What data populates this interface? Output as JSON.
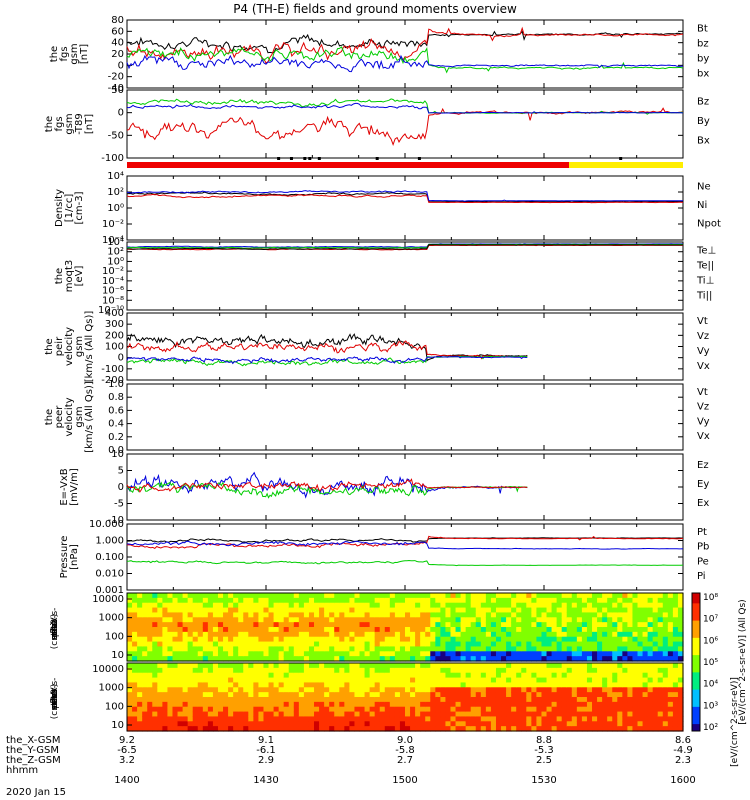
{
  "title": "P4 (TH-E) fields and ground moments overview",
  "date_label": "2020 Jan 15",
  "colors": {
    "black": "#000000",
    "red": "#e00000",
    "green": "#00cc00",
    "blue": "#0000dd",
    "yellow": "#ffee00",
    "flag_red": "#ee0000"
  },
  "chart_data": {
    "type": "line",
    "x_time_label": "hhmm",
    "x_ticks": [
      "1400",
      "1430",
      "1500",
      "1530",
      "1600"
    ],
    "x_range_minutes": [
      0,
      120
    ],
    "orbit_rows": [
      {
        "label": "the_X-GSM",
        "values": [
          "9.2",
          "9.1",
          "9.0",
          "8.8",
          "8.6"
        ]
      },
      {
        "label": "the_Y-GSM",
        "values": [
          "-6.5",
          "-6.1",
          "-5.8",
          "-5.3",
          "-4.9"
        ]
      },
      {
        "label": "the_Z-GSM",
        "values": [
          "3.2",
          "2.9",
          "2.7",
          "2.5",
          "2.3"
        ]
      }
    ],
    "panels": [
      {
        "id": "fgs",
        "ylabel": [
          "the",
          "fgs",
          "gsm",
          "[nT]"
        ],
        "yrange": [
          -40,
          80
        ],
        "yticks": [
          "80",
          "60",
          "40",
          "20",
          "0",
          "-20",
          "-40"
        ],
        "legend": [
          {
            "text": "Bt",
            "color": "#000000"
          },
          {
            "text": "bz",
            "color": "#e00000"
          },
          {
            "text": "by",
            "color": "#00cc00"
          },
          {
            "text": "bx",
            "color": "#0000dd"
          }
        ],
        "series": [
          {
            "name": "Bt",
            "color": "#000000",
            "before": 40,
            "after": 55,
            "noise": 14
          },
          {
            "name": "bz",
            "color": "#e00000",
            "before": 25,
            "after": 54,
            "noise": 18
          },
          {
            "name": "by",
            "color": "#00cc00",
            "before": 20,
            "after": -5,
            "noise": 14
          },
          {
            "name": "bx",
            "color": "#0000dd",
            "before": 5,
            "after": 0,
            "noise": 14
          }
        ]
      },
      {
        "id": "fgs-dip",
        "ylabel": [
          "the",
          "fgs",
          "gsm",
          "-T89",
          "[nT]"
        ],
        "yrange": [
          -110,
          55
        ],
        "yticks": [
          "50",
          "0",
          "-50",
          "-100"
        ],
        "legend": [
          {
            "text": "Bz",
            "color": "#e00000"
          },
          {
            "text": "By",
            "color": "#00cc00"
          },
          {
            "text": "Bx",
            "color": "#0000dd"
          }
        ],
        "series": [
          {
            "name": "Bz",
            "color": "#e00000",
            "before": -40,
            "after": 0,
            "noise": 25
          },
          {
            "name": "By",
            "color": "#00cc00",
            "before": 25,
            "after": 0,
            "noise": 8
          },
          {
            "name": "Bx",
            "color": "#0000dd",
            "before": 15,
            "after": 0,
            "noise": 6
          }
        ]
      },
      {
        "id": "density",
        "ylabel": [
          "Density",
          "[1/cc]",
          "[cm-3]"
        ],
        "yrange_log": [
          -4,
          4
        ],
        "yticks": [
          "10⁴",
          "10²",
          "10⁰",
          "10⁻²",
          "10⁻⁴"
        ],
        "legend": [
          {
            "text": "Ne",
            "color": "#e00000"
          },
          {
            "text": "Ni",
            "color": "#000000"
          },
          {
            "text": "Npot",
            "color": "#0000dd"
          }
        ],
        "series": [
          {
            "name": "Ni",
            "color": "#000000",
            "before": 1.8,
            "after": 0.8,
            "noise": 0.15
          },
          {
            "name": "Ne",
            "color": "#e00000",
            "before": 1.5,
            "after": 0.7,
            "noise": 0.15
          },
          {
            "name": "Npot",
            "color": "#0000dd",
            "before": 2.0,
            "after": 0.9,
            "noise": 0.15
          }
        ]
      },
      {
        "id": "temp",
        "ylabel": [
          "the",
          "moqt3",
          "[eV]"
        ],
        "yrange_log": [
          -10,
          4
        ],
        "yticks": [
          "10⁴",
          "10²",
          "10⁰",
          "10⁻²",
          "10⁻⁴",
          "10⁻⁶",
          "10⁻⁸",
          "10⁻¹⁰"
        ],
        "legend": [
          {
            "text": "Te⊥",
            "color": "#e00000"
          },
          {
            "text": "Te||",
            "color": "#000000"
          },
          {
            "text": "Ti⊥",
            "color": "#0000dd"
          },
          {
            "text": "Ti||",
            "color": "#00cc00"
          }
        ],
        "series": [
          {
            "name": "Ti",
            "color": "#0000dd",
            "before": 3.0,
            "after": 3.6,
            "noise": 0.1
          },
          {
            "name": "Ti||",
            "color": "#00cc00",
            "before": 2.8,
            "after": 3.5,
            "noise": 0.1
          },
          {
            "name": "Te",
            "color": "#e00000",
            "before": 2.5,
            "after": 3.3,
            "noise": 0.1
          },
          {
            "name": "Te||",
            "color": "#000000",
            "before": 2.6,
            "after": 3.4,
            "noise": 0.1
          }
        ]
      },
      {
        "id": "peir-vel",
        "ylabel": [
          "the",
          "peir",
          "velocity",
          "gsm",
          "[km/s (All Qs)]"
        ],
        "yrange": [
          -200,
          400
        ],
        "yticks": [
          "400",
          "300",
          "200",
          "100",
          "0",
          "-100",
          "-200"
        ],
        "legend": [
          {
            "text": "Vt",
            "color": "#000000"
          },
          {
            "text": "Vz",
            "color": "#e00000"
          },
          {
            "text": "Vy",
            "color": "#00cc00"
          },
          {
            "text": "Vx",
            "color": "#0000dd"
          }
        ],
        "end_fraction": 0.72,
        "series": [
          {
            "name": "Vt",
            "color": "#000000",
            "before": 140,
            "after": 20,
            "noise": 60
          },
          {
            "name": "Vz",
            "color": "#e00000",
            "before": 90,
            "after": 15,
            "noise": 50
          },
          {
            "name": "Vy",
            "color": "#00cc00",
            "before": -40,
            "after": 10,
            "noise": 30
          },
          {
            "name": "Vx",
            "color": "#0000dd",
            "before": -20,
            "after": 5,
            "noise": 30
          }
        ]
      },
      {
        "id": "peer-vel",
        "ylabel": [
          "the",
          "peer",
          "velocity",
          "gsm",
          "[km/s (All Qs)]"
        ],
        "yrange": [
          0,
          1
        ],
        "yticks": [
          "1.0",
          "0.8",
          "0.6",
          "0.4",
          "0.2",
          "0.0"
        ],
        "legend": [
          {
            "text": "Vt",
            "color": "#000000"
          },
          {
            "text": "Vz",
            "color": "#e00000"
          },
          {
            "text": "Vy",
            "color": "#00cc00"
          },
          {
            "text": "Vx",
            "color": "#0000dd"
          }
        ],
        "series": []
      },
      {
        "id": "efield",
        "ylabel": [
          "E=-VxB",
          "[mV/m]"
        ],
        "yrange": [
          -10,
          10
        ],
        "yticks": [
          "10",
          "5",
          "0",
          "-5",
          "-10"
        ],
        "legend": [
          {
            "text": "Ez",
            "color": "#e00000"
          },
          {
            "text": "Ey",
            "color": "#00cc00"
          },
          {
            "text": "Ex",
            "color": "#0000dd"
          }
        ],
        "end_fraction": 0.72,
        "series": [
          {
            "name": "Ex",
            "color": "#0000dd",
            "before": 1,
            "after": 0,
            "noise": 3
          },
          {
            "name": "Ey",
            "color": "#00cc00",
            "before": -1,
            "after": 0,
            "noise": 2
          },
          {
            "name": "Ez",
            "color": "#e00000",
            "before": 0,
            "after": 0,
            "noise": 1.5
          }
        ]
      },
      {
        "id": "pressure",
        "ylabel": [
          "Pressure",
          "[nPa]"
        ],
        "yrange_log": [
          -3,
          1
        ],
        "yticks": [
          "10.000",
          "1.000",
          "0.100",
          "0.010",
          "0.001"
        ],
        "legend": [
          {
            "text": "Pt",
            "color": "#000000"
          },
          {
            "text": "Pb",
            "color": "#e00000"
          },
          {
            "text": "Pe",
            "color": "#00cc00"
          },
          {
            "text": "Pi",
            "color": "#0000dd"
          }
        ],
        "series": [
          {
            "name": "Pt",
            "color": "#000000",
            "before": 0.0,
            "after": 0.15,
            "noise": 0.1
          },
          {
            "name": "Pb",
            "color": "#e00000",
            "before": -0.3,
            "after": 0.12,
            "noise": 0.15
          },
          {
            "name": "Pi",
            "color": "#0000dd",
            "before": -0.2,
            "after": -0.5,
            "noise": 0.15
          },
          {
            "name": "Pe",
            "color": "#00cc00",
            "before": -1.3,
            "after": -1.5,
            "noise": 0.1
          }
        ]
      }
    ],
    "spectrograms": [
      {
        "id": "peir-en",
        "ylabel": [
          "the",
          "peir",
          "en",
          "eflux",
          "eV",
          "(cm^2-s-",
          "sr-eV)"
        ],
        "yticks": [
          "10000",
          "1000",
          "100",
          "10"
        ]
      },
      {
        "id": "peer-en",
        "ylabel": [
          "the",
          "peer",
          "en",
          "eflux",
          "eV",
          "(cm^2-s-",
          "sr-eV)"
        ],
        "yticks": [
          "10000",
          "1000",
          "100",
          "10"
        ]
      }
    ],
    "colorbar": {
      "ticks": [
        "10⁸",
        "10⁷",
        "10⁶",
        "10⁵",
        "10⁴",
        "10³",
        "10²"
      ],
      "label": "[eV/(cm^2-s-sr-eV)] (All Qs)",
      "label2": "[eV/(cm^2-s-sr-eV)]"
    }
  }
}
